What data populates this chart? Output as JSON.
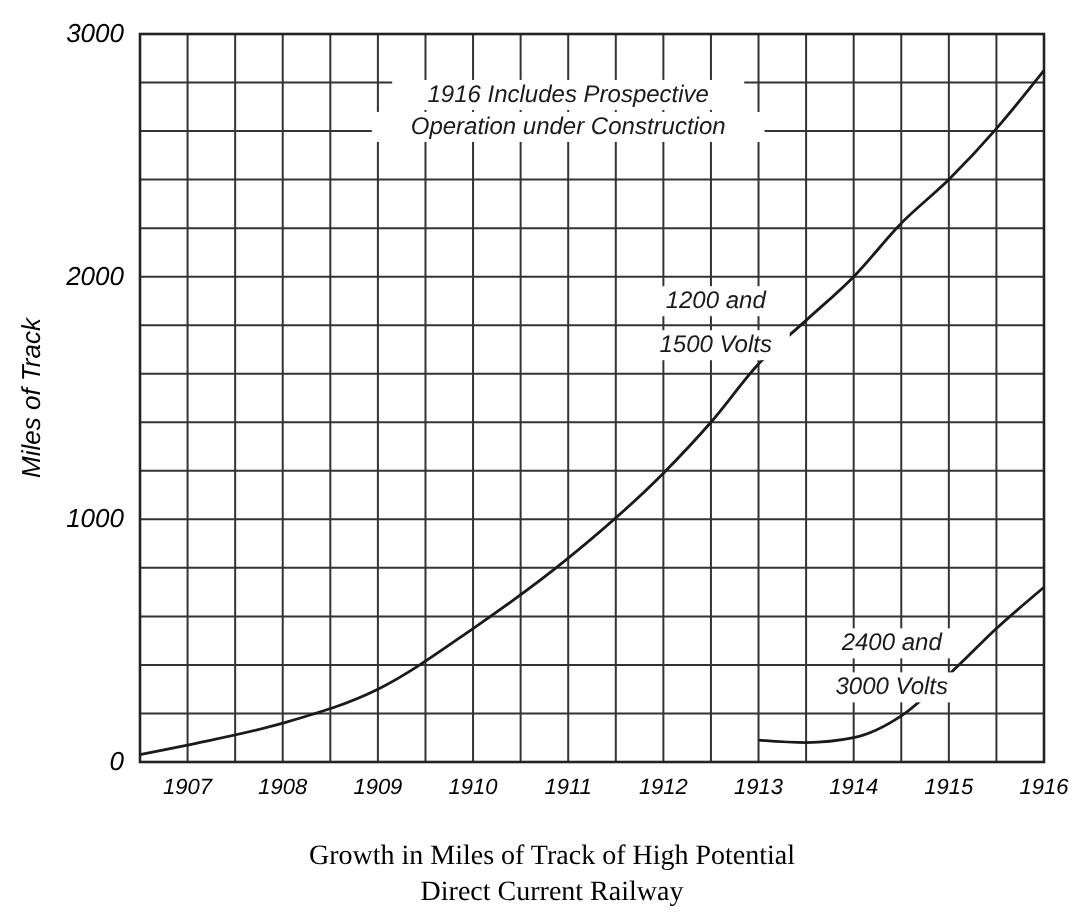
{
  "chart_data": {
    "type": "line",
    "title": "Growth in Miles of Track of High Potential\nDirect Current Railway",
    "ylabel": "Miles of Track",
    "annotations": [
      "1916 Includes Prospective\nOperation under Construction"
    ],
    "xlim": [
      1906.5,
      1916
    ],
    "ylim": [
      0,
      3000
    ],
    "xticks": [
      {
        "value": 1906.5,
        "label": null
      },
      1907,
      {
        "value": 1907.5,
        "label": null
      },
      1908,
      {
        "value": 1908.5,
        "label": null
      },
      1909,
      {
        "value": 1909.5,
        "label": null
      },
      1910,
      {
        "value": 1910.5,
        "label": null
      },
      1911,
      {
        "value": 1911.5,
        "label": null
      },
      1912,
      {
        "value": 1912.5,
        "label": null
      },
      1913,
      {
        "value": 1913.5,
        "label": null
      },
      1914,
      {
        "value": 1914.5,
        "label": null
      },
      1915,
      {
        "value": 1915.5,
        "label": null
      },
      1916
    ],
    "yticks": [
      0,
      {
        "value": 200,
        "label": null
      },
      {
        "value": 400,
        "label": null
      },
      {
        "value": 600,
        "label": null
      },
      {
        "value": 800,
        "label": null
      },
      1000,
      {
        "value": 1200,
        "label": null
      },
      {
        "value": 1400,
        "label": null
      },
      {
        "value": 1600,
        "label": null
      },
      {
        "value": 1800,
        "label": null
      },
      2000,
      {
        "value": 2200,
        "label": null
      },
      {
        "value": 2400,
        "label": null
      },
      {
        "value": 2600,
        "label": null
      },
      {
        "value": 2800,
        "label": null
      },
      3000
    ],
    "grid": true,
    "line_style": "solid",
    "marker": "none",
    "series": [
      {
        "name": "1200 and\n1500 Volts",
        "color": "#1a1a1a",
        "x": [
          1906.5,
          1907,
          1908,
          1909,
          1910,
          1911,
          1912,
          1912.5,
          1913,
          1913.5,
          1914,
          1914.5,
          1915,
          1915.5,
          1916
        ],
        "values": [
          30,
          70,
          160,
          300,
          550,
          840,
          1190,
          1400,
          1640,
          1820,
          2000,
          2220,
          2400,
          2610,
          2850
        ]
      },
      {
        "name": "2400 and\n3000 Volts",
        "color": "#1a1a1a",
        "x": [
          1913,
          1913.5,
          1914,
          1914.5,
          1915,
          1915.5,
          1916
        ],
        "values": [
          90,
          80,
          100,
          190,
          360,
          550,
          720
        ]
      }
    ]
  }
}
